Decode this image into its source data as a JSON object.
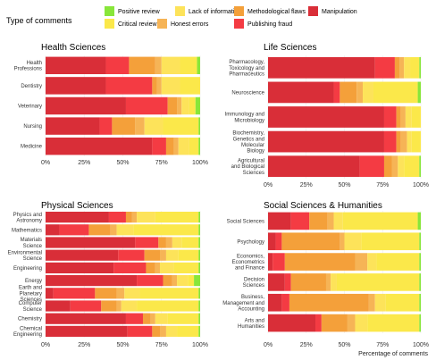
{
  "legend": {
    "title": "Type of comments",
    "items": [
      {
        "key": "positive",
        "label": "Positive review",
        "color": "#88e63a"
      },
      {
        "key": "critical",
        "label": "Critical review",
        "color": "#fbe84a"
      },
      {
        "key": "lack",
        "label": "Lack of information",
        "color": "#fde35a"
      },
      {
        "key": "honest",
        "label": "Honest errors",
        "color": "#f6b456"
      },
      {
        "key": "method",
        "label": "Methodological flaws",
        "color": "#f4a03a"
      },
      {
        "key": "fraud",
        "label": "Publishing fraud",
        "color": "#f43b43"
      },
      {
        "key": "manip",
        "label": "Manipulation",
        "color": "#d92e38"
      }
    ]
  },
  "chart_data": [
    {
      "type": "bar",
      "orientation": "horizontal",
      "stacked": true,
      "title": "Health Sciences",
      "xlabel": "",
      "xlim": [
        0,
        100
      ],
      "ticks": [
        "0%",
        "25%",
        "50%",
        "75%",
        "100%"
      ],
      "categories": [
        {
          "label": [
            "Health",
            "Professions"
          ],
          "values": {
            "manip": 39,
            "fraud": 15,
            "method": 17,
            "honest": 4,
            "lack": 12,
            "critical": 11,
            "positive": 2
          }
        },
        {
          "label": [
            "Dentistry"
          ],
          "values": {
            "manip": 39,
            "fraud": 30,
            "method": 3,
            "honest": 3,
            "lack": 12,
            "critical": 13,
            "positive": 0
          }
        },
        {
          "label": [
            "Veterinary"
          ],
          "values": {
            "manip": 52,
            "fraud": 27,
            "method": 6,
            "honest": 3,
            "lack": 5,
            "critical": 4,
            "positive": 3
          }
        },
        {
          "label": [
            "Nursing"
          ],
          "values": {
            "manip": 35,
            "fraud": 8,
            "method": 15,
            "honest": 6,
            "lack": 12,
            "critical": 23,
            "positive": 1
          }
        },
        {
          "label": [
            "Medicine"
          ],
          "values": {
            "manip": 69,
            "fraud": 9,
            "method": 5,
            "honest": 3,
            "lack": 7,
            "critical": 6,
            "positive": 1
          }
        }
      ]
    },
    {
      "type": "bar",
      "orientation": "horizontal",
      "stacked": true,
      "title": "Life Sciences",
      "xlabel": "",
      "xlim": [
        0,
        100
      ],
      "ticks": [
        "0%",
        "25%",
        "50%",
        "75%",
        "100%"
      ],
      "categories": [
        {
          "label": [
            "Pharmacology,",
            "Toxicology and",
            "Pharmaceutics"
          ],
          "values": {
            "manip": 70,
            "fraud": 13,
            "method": 3,
            "honest": 3,
            "lack": 4,
            "critical": 6,
            "positive": 1
          }
        },
        {
          "label": [
            "Neuroscience"
          ],
          "values": {
            "manip": 43,
            "fraud": 4,
            "method": 11,
            "honest": 4,
            "lack": 7,
            "critical": 29,
            "positive": 2
          }
        },
        {
          "label": [
            "Immunology and",
            "Microbiology"
          ],
          "values": {
            "manip": 76,
            "fraud": 8,
            "method": 3,
            "honest": 3,
            "lack": 4,
            "critical": 6,
            "positive": 0
          }
        },
        {
          "label": [
            "Biochemistry,",
            "Genetics and",
            "Molecular",
            "Biology"
          ],
          "values": {
            "manip": 76,
            "fraud": 8,
            "method": 3,
            "honest": 4,
            "lack": 3,
            "critical": 6,
            "positive": 0
          }
        },
        {
          "label": [
            "Agricultural",
            "and Biological",
            "Sciences"
          ],
          "values": {
            "manip": 60,
            "fraud": 16,
            "method": 5,
            "honest": 4,
            "lack": 4,
            "critical": 10,
            "positive": 1
          }
        }
      ]
    },
    {
      "type": "bar",
      "orientation": "horizontal",
      "stacked": true,
      "title": "Physical Sciences",
      "xlabel": "",
      "xlim": [
        0,
        100
      ],
      "ticks": [
        "0%",
        "25%",
        "50%",
        "75%",
        "100%"
      ],
      "categories": [
        {
          "label": [
            "Physics and",
            "Astronomy"
          ],
          "values": {
            "manip": 41,
            "fraud": 11,
            "method": 4,
            "honest": 3,
            "lack": 12,
            "critical": 28,
            "positive": 1
          }
        },
        {
          "label": [
            "Mathematics"
          ],
          "values": {
            "manip": 9,
            "fraud": 19,
            "method": 14,
            "honest": 4,
            "lack": 11,
            "critical": 42,
            "positive": 1
          }
        },
        {
          "label": [
            "Materials",
            "Science"
          ],
          "values": {
            "manip": 58,
            "fraud": 15,
            "method": 5,
            "honest": 4,
            "lack": 6,
            "critical": 11,
            "positive": 1
          }
        },
        {
          "label": [
            "Environmental",
            "Science"
          ],
          "values": {
            "manip": 47,
            "fraud": 17,
            "method": 10,
            "honest": 4,
            "lack": 8,
            "critical": 13,
            "positive": 1
          }
        },
        {
          "label": [
            "Engineering"
          ],
          "values": {
            "manip": 44,
            "fraud": 21,
            "method": 6,
            "honest": 3,
            "lack": 9,
            "critical": 16,
            "positive": 1
          }
        },
        {
          "label": [
            "Energy"
          ],
          "values": {
            "manip": 59,
            "fraud": 17,
            "method": 6,
            "honest": 3,
            "lack": 7,
            "critical": 4,
            "positive": 4
          }
        },
        {
          "label": [
            "Earth and",
            "Planetary",
            "Sciences"
          ],
          "values": {
            "manip": 5,
            "fraud": 27,
            "method": 14,
            "honest": 5,
            "lack": 10,
            "critical": 38,
            "positive": 1
          }
        },
        {
          "label": [
            "Computer",
            "Science"
          ],
          "values": {
            "manip": 16,
            "fraud": 20,
            "method": 10,
            "honest": 3,
            "lack": 10,
            "critical": 40,
            "positive": 1
          }
        },
        {
          "label": [
            "Chemistry"
          ],
          "values": {
            "manip": 52,
            "fraud": 11,
            "method": 5,
            "honest": 3,
            "lack": 8,
            "critical": 20,
            "positive": 1
          }
        },
        {
          "label": [
            "Chemical",
            "Engineering"
          ],
          "values": {
            "manip": 53,
            "fraud": 16,
            "method": 5,
            "honest": 4,
            "lack": 7,
            "critical": 14,
            "positive": 1
          }
        }
      ]
    },
    {
      "type": "bar",
      "orientation": "horizontal",
      "stacked": true,
      "title": "Social Sciences & Humanities",
      "xlabel": "Percentage of comments",
      "xlim": [
        0,
        100
      ],
      "ticks": [
        "0%",
        "25%",
        "50%",
        "75%",
        "100%"
      ],
      "categories": [
        {
          "label": [
            "Social Sciences"
          ],
          "values": {
            "manip": 15,
            "fraud": 12,
            "method": 12,
            "honest": 4,
            "lack": 6,
            "critical": 49,
            "positive": 2
          }
        },
        {
          "label": [
            "Psychology"
          ],
          "values": {
            "manip": 5,
            "fraud": 4,
            "method": 38,
            "honest": 3,
            "lack": 11,
            "critical": 38,
            "positive": 1
          }
        },
        {
          "label": [
            "Economics,",
            "Econometrics",
            "and Finance"
          ],
          "values": {
            "manip": 3,
            "fraud": 8,
            "method": 46,
            "honest": 8,
            "lack": 6,
            "critical": 28,
            "positive": 1
          }
        },
        {
          "label": [
            "Decision",
            "Sciences"
          ],
          "values": {
            "manip": 11,
            "fraud": 4,
            "method": 23,
            "honest": 3,
            "lack": 4,
            "critical": 54,
            "positive": 1
          }
        },
        {
          "label": [
            "Business,",
            "Management and",
            "Accounting"
          ],
          "values": {
            "manip": 9,
            "fraud": 5,
            "method": 52,
            "honest": 4,
            "lack": 7,
            "critical": 22,
            "positive": 1
          }
        },
        {
          "label": [
            "Arts and",
            "Humanities"
          ],
          "values": {
            "manip": 31,
            "fraud": 4,
            "method": 17,
            "honest": 5,
            "lack": 8,
            "critical": 34,
            "positive": 1
          }
        }
      ]
    }
  ]
}
